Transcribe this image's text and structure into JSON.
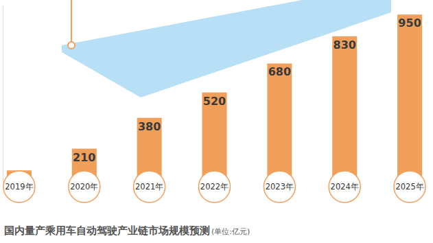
{
  "chart_data": {
    "type": "bar",
    "title": "国内量产乘用车自动驾驶产业链市场规模预测",
    "subtitle": "(单位:亿元)",
    "categories": [
      "2019年",
      "2020年",
      "2021年",
      "2022年",
      "2023年",
      "2024年",
      "2025年"
    ],
    "values": [
      90,
      210,
      380,
      520,
      680,
      830,
      950
    ],
    "color": "#f0a05a",
    "ylim": [
      0,
      1000
    ],
    "yticks": [],
    "grid": false,
    "data_labels": true,
    "tick_labels": "x"
  }
}
